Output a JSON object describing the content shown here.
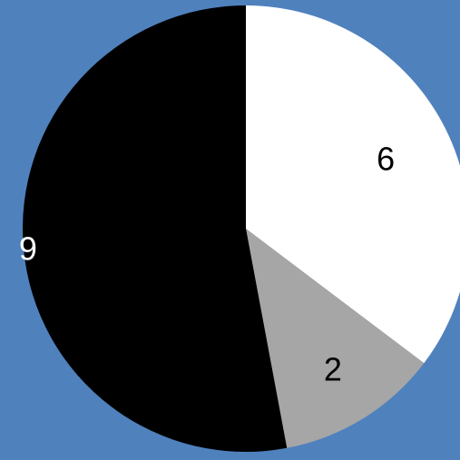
{
  "chart_data": {
    "type": "pie",
    "values": [
      6,
      2,
      9
    ],
    "colors": [
      "#ffffff",
      "#a6a6a6",
      "#000000"
    ],
    "label_colors": [
      "#000000",
      "#000000",
      "#ffffff"
    ],
    "data_labels": [
      "6",
      "2",
      "9"
    ],
    "start_angle": "12 o'clock",
    "direction": "clockwise"
  },
  "background_color": "#4f81bd"
}
